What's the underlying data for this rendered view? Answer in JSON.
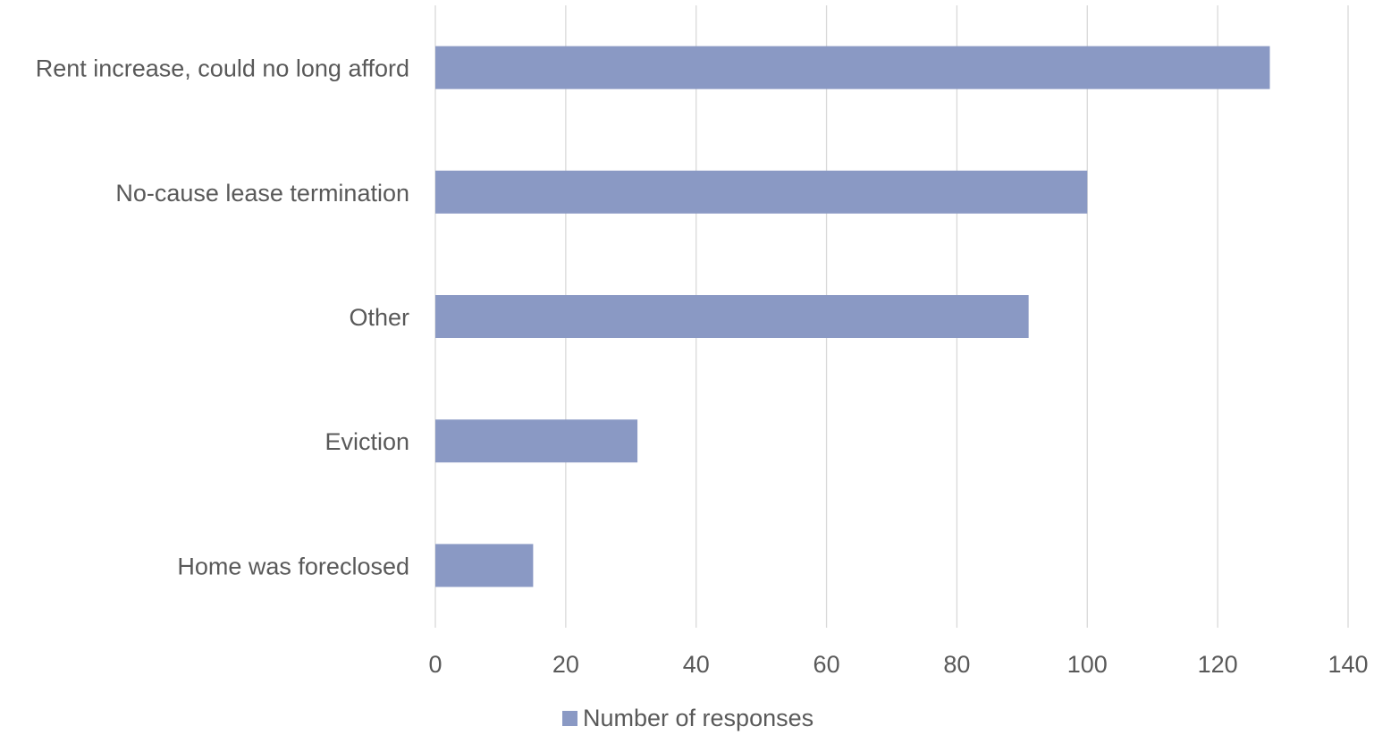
{
  "chart_data": {
    "type": "bar",
    "orientation": "horizontal",
    "categories": [
      "Rent increase, could no long afford",
      "No-cause lease termination",
      "Other",
      "Eviction",
      "Home was foreclosed"
    ],
    "series": [
      {
        "name": "Number of responses",
        "values": [
          128,
          100,
          91,
          31,
          15
        ],
        "color": "#8a99c4"
      }
    ],
    "xlim": [
      0,
      140
    ],
    "xticks": [
      "0",
      "20",
      "40",
      "60",
      "80",
      "100",
      "120",
      "140"
    ],
    "grid": true,
    "legend_position": "bottom"
  }
}
